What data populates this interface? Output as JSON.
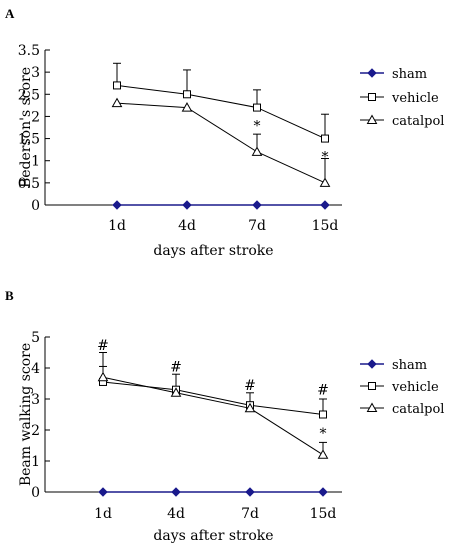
{
  "chart_data": [
    {
      "panel": "A",
      "type": "line",
      "categories": [
        "1d",
        "4d",
        "7d",
        "15d"
      ],
      "xlabel": "days after stroke",
      "ylabel": "Bederson's score",
      "ylim": [
        0,
        3.5
      ],
      "yticks": [
        "0",
        "0.5",
        "1",
        "1.5",
        "2",
        "2.5",
        "3",
        "3.5"
      ],
      "legend_position": "right",
      "grid": false,
      "series": [
        {
          "name": "sham",
          "values": [
            0,
            0,
            0,
            0
          ],
          "errors": [
            0,
            0,
            0,
            0
          ],
          "marker": "diamond-filled",
          "color": "#1a1a8c"
        },
        {
          "name": "vehicle",
          "values": [
            2.7,
            2.5,
            2.2,
            1.5
          ],
          "errors": [
            0.5,
            0.55,
            0.4,
            0.55
          ],
          "marker": "square-open",
          "color": "#000000"
        },
        {
          "name": "catalpol",
          "values": [
            2.3,
            2.2,
            1.2,
            0.5
          ],
          "errors": [
            0,
            0,
            0.4,
            0.55
          ],
          "marker": "triangle-open",
          "color": "#000000"
        }
      ],
      "annotations": [
        {
          "category": "7d",
          "value": 1.8,
          "text": "*"
        },
        {
          "category": "15d",
          "value": 1.1,
          "text": "*"
        }
      ]
    },
    {
      "panel": "B",
      "type": "line",
      "categories": [
        "1d",
        "4d",
        "7d",
        "15d"
      ],
      "xlabel": "days after stroke",
      "ylabel": "Beam walking score",
      "ylim": [
        0,
        5
      ],
      "yticks": [
        "0",
        "1",
        "2",
        "3",
        "4",
        "5"
      ],
      "legend_position": "right",
      "grid": false,
      "series": [
        {
          "name": "sham",
          "values": [
            0,
            0,
            0,
            0
          ],
          "errors": [
            0,
            0,
            0,
            0
          ],
          "marker": "diamond-filled",
          "color": "#1a1a8c"
        },
        {
          "name": "vehicle",
          "values": [
            3.55,
            3.3,
            2.8,
            2.5
          ],
          "errors": [
            0.5,
            0.5,
            0.4,
            0.5
          ],
          "marker": "square-open",
          "color": "#000000"
        },
        {
          "name": "catalpol",
          "values": [
            3.7,
            3.2,
            2.7,
            1.2
          ],
          "errors": [
            0.8,
            0,
            0,
            0.4
          ],
          "marker": "triangle-open",
          "color": "#000000"
        }
      ],
      "annotations": [
        {
          "category": "1d",
          "value": 4.75,
          "text": "#"
        },
        {
          "category": "4d",
          "value": 4.05,
          "text": "#"
        },
        {
          "category": "7d",
          "value": 3.45,
          "text": "#"
        },
        {
          "category": "15d",
          "value": 3.3,
          "text": "#"
        },
        {
          "category": "15d",
          "value": 1.9,
          "text": "*"
        }
      ]
    }
  ]
}
